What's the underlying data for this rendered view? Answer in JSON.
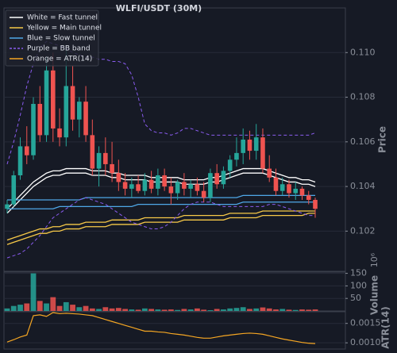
{
  "chart_data": {
    "type": "candlestick",
    "title": "WLFI/USDT (30M)",
    "ylabel": "Price",
    "ylim": [
      0.1002,
      0.112
    ],
    "yticks": [
      0.102,
      0.104,
      0.106,
      0.108,
      {
        "value": 0.11,
        "label": "0.110"
      }
    ],
    "grid": true,
    "legend": "upper left",
    "candles": {
      "up_color": "#26a69a",
      "down_color": "#ef5350",
      "open": [
        0.103,
        0.1032,
        0.1045,
        0.1058,
        0.1054,
        0.1077,
        0.1063,
        0.1092,
        0.1066,
        0.1062,
        0.1085,
        0.107,
        0.1078,
        0.1063,
        0.1048,
        0.1055,
        0.105,
        0.1046,
        0.1042,
        0.1039,
        0.1041,
        0.1038,
        0.1043,
        0.1039,
        0.1045,
        0.104,
        0.1037,
        0.1042,
        0.1039,
        0.1041,
        0.1038,
        0.1035,
        0.1046,
        0.1041,
        0.1047,
        0.1052,
        0.1055,
        0.1061,
        0.1056,
        0.1062,
        0.1048,
        0.1044,
        0.1038,
        0.1041,
        0.1037,
        0.1039,
        0.1036,
        0.1034
      ],
      "high": [
        0.1034,
        0.1047,
        0.1062,
        0.1067,
        0.108,
        0.1085,
        0.1098,
        0.11,
        0.1075,
        0.1102,
        0.1094,
        0.108,
        0.1085,
        0.107,
        0.1058,
        0.1062,
        0.106,
        0.1052,
        0.1046,
        0.1044,
        0.1045,
        0.1046,
        0.1047,
        0.1048,
        0.1048,
        0.1044,
        0.1043,
        0.1046,
        0.1043,
        0.1044,
        0.1042,
        0.1048,
        0.105,
        0.1049,
        0.1054,
        0.1062,
        0.1066,
        0.1065,
        0.1068,
        0.1066,
        0.1054,
        0.1048,
        0.1044,
        0.1043,
        0.1042,
        0.104,
        0.1038,
        0.1035
      ],
      "low": [
        0.1028,
        0.1031,
        0.1043,
        0.105,
        0.1052,
        0.106,
        0.106,
        0.106,
        0.1058,
        0.1058,
        0.1065,
        0.1062,
        0.106,
        0.1045,
        0.104,
        0.1045,
        0.1042,
        0.1038,
        0.1036,
        0.1035,
        0.1037,
        0.1036,
        0.1037,
        0.1036,
        0.1038,
        0.1032,
        0.1034,
        0.1036,
        0.1035,
        0.1036,
        0.1033,
        0.1033,
        0.1039,
        0.1039,
        0.1044,
        0.1049,
        0.105,
        0.1052,
        0.1052,
        0.1046,
        0.1042,
        0.1036,
        0.1036,
        0.1035,
        0.1034,
        0.1034,
        0.1032,
        0.1026
      ],
      "close": [
        0.1032,
        0.1045,
        0.1058,
        0.1054,
        0.1077,
        0.1063,
        0.1092,
        0.1066,
        0.1062,
        0.1085,
        0.107,
        0.1078,
        0.1063,
        0.1048,
        0.1055,
        0.105,
        0.1046,
        0.1042,
        0.1039,
        0.1041,
        0.1038,
        0.1043,
        0.1039,
        0.1045,
        0.104,
        0.1037,
        0.1042,
        0.1039,
        0.1041,
        0.1038,
        0.1035,
        0.1046,
        0.1041,
        0.1047,
        0.1052,
        0.1055,
        0.1061,
        0.1056,
        0.1062,
        0.1048,
        0.1044,
        0.1038,
        0.1041,
        0.1037,
        0.1039,
        0.1036,
        0.1034,
        0.103
      ]
    },
    "lines": [
      {
        "name": "White = Fast tunnel",
        "color": "#ffffff",
        "dash": false,
        "values": [
          0.103,
          0.1033,
          0.1036,
          0.1039,
          0.1042,
          0.1044,
          0.1046,
          0.1047,
          0.1047,
          0.1048,
          0.1048,
          0.1048,
          0.1048,
          0.1047,
          0.1047,
          0.1047,
          0.1046,
          0.1046,
          0.1045,
          0.1045,
          0.1045,
          0.1045,
          0.1044,
          0.1044,
          0.1044,
          0.1044,
          0.1044,
          0.1043,
          0.1043,
          0.1043,
          0.1043,
          0.1044,
          0.1044,
          0.1045,
          0.1046,
          0.1047,
          0.1048,
          0.1048,
          0.1048,
          0.1048,
          0.1047,
          0.1046,
          0.1045,
          0.1044,
          0.1044,
          0.1043,
          0.1043,
          0.1042
        ]
      },
      {
        "color": "#ffffff",
        "dash": false,
        "values": [
          0.1028,
          0.1031,
          0.1034,
          0.1037,
          0.104,
          0.1042,
          0.1044,
          0.1045,
          0.1045,
          0.1046,
          0.1046,
          0.1046,
          0.1046,
          0.1045,
          0.1045,
          0.1045,
          0.1044,
          0.1044,
          0.1043,
          0.1043,
          0.1043,
          0.1043,
          0.1042,
          0.1042,
          0.1042,
          0.1042,
          0.1042,
          0.1041,
          0.1041,
          0.1041,
          0.1041,
          0.1042,
          0.1042,
          0.1043,
          0.1044,
          0.1045,
          0.1046,
          0.1046,
          0.1046,
          0.1046,
          0.1045,
          0.1044,
          0.1043,
          0.1042,
          0.1042,
          0.1041,
          0.1041,
          0.104
        ]
      },
      {
        "name": "Yellow = Main tunnel",
        "color": "#f7c948",
        "dash": false,
        "values": [
          0.1016,
          0.1017,
          0.1018,
          0.1019,
          0.102,
          0.1021,
          0.1021,
          0.1022,
          0.1022,
          0.1023,
          0.1023,
          0.1023,
          0.1024,
          0.1024,
          0.1024,
          0.1024,
          0.1025,
          0.1025,
          0.1025,
          0.1025,
          0.1025,
          0.1026,
          0.1026,
          0.1026,
          0.1026,
          0.1026,
          0.1026,
          0.1027,
          0.1027,
          0.1027,
          0.1027,
          0.1027,
          0.1027,
          0.1027,
          0.1028,
          0.1028,
          0.1028,
          0.1028,
          0.1028,
          0.1029,
          0.1029,
          0.1029,
          0.1029,
          0.1029,
          0.1029,
          0.1029,
          0.1029,
          0.1029
        ]
      },
      {
        "color": "#f7c948",
        "dash": false,
        "values": [
          0.1014,
          0.1015,
          0.1016,
          0.1017,
          0.1018,
          0.1019,
          0.1019,
          0.102,
          0.102,
          0.1021,
          0.1021,
          0.1021,
          0.1022,
          0.1022,
          0.1022,
          0.1022,
          0.1023,
          0.1023,
          0.1023,
          0.1023,
          0.1023,
          0.1024,
          0.1024,
          0.1024,
          0.1024,
          0.1024,
          0.1024,
          0.1025,
          0.1025,
          0.1025,
          0.1025,
          0.1025,
          0.1025,
          0.1025,
          0.1026,
          0.1026,
          0.1026,
          0.1026,
          0.1026,
          0.1027,
          0.1027,
          0.1027,
          0.1027,
          0.1027,
          0.1027,
          0.1027,
          0.1028,
          0.1028
        ]
      },
      {
        "name": "Blue = Slow tunnel",
        "color": "#4fa8e8",
        "dash": false,
        "values": [
          0.1034,
          0.1034,
          0.1034,
          0.1034,
          0.1034,
          0.1034,
          0.1034,
          0.1034,
          0.1034,
          0.1034,
          0.1034,
          0.1034,
          0.1035,
          0.1035,
          0.1035,
          0.1035,
          0.1035,
          0.1035,
          0.1035,
          0.1035,
          0.1035,
          0.1035,
          0.1035,
          0.1035,
          0.1035,
          0.1035,
          0.1035,
          0.1035,
          0.1035,
          0.1035,
          0.1035,
          0.1035,
          0.1035,
          0.1035,
          0.1035,
          0.1035,
          0.1036,
          0.1036,
          0.1036,
          0.1036,
          0.1036,
          0.1036,
          0.1036,
          0.1036,
          0.1036,
          0.1036,
          0.1036,
          0.1036
        ]
      },
      {
        "color": "#4fa8e8",
        "dash": false,
        "values": [
          0.103,
          0.103,
          0.103,
          0.103,
          0.103,
          0.103,
          0.103,
          0.103,
          0.1031,
          0.1031,
          0.1031,
          0.1031,
          0.1031,
          0.1031,
          0.1031,
          0.1031,
          0.1031,
          0.1031,
          0.1031,
          0.1031,
          0.1032,
          0.1032,
          0.1032,
          0.1032,
          0.1032,
          0.1032,
          0.1032,
          0.1032,
          0.1032,
          0.1032,
          0.1032,
          0.1032,
          0.1032,
          0.1032,
          0.1032,
          0.1032,
          0.1033,
          0.1033,
          0.1033,
          0.1033,
          0.1033,
          0.1033,
          0.1033,
          0.1033,
          0.1033,
          0.1033,
          0.1033,
          0.1033
        ]
      },
      {
        "name": "Purple = BB band",
        "color": "#8a5cf0",
        "dash": true,
        "values": [
          0.105,
          0.106,
          0.1072,
          0.1085,
          0.1095,
          0.1102,
          0.1105,
          0.1104,
          0.1103,
          0.1102,
          0.11,
          0.1099,
          0.1098,
          0.1098,
          0.1097,
          0.1097,
          0.1096,
          0.1096,
          0.1095,
          0.109,
          0.108,
          0.1068,
          0.1065,
          0.1064,
          0.1064,
          0.1063,
          0.1064,
          0.1066,
          0.1066,
          0.1065,
          0.1064,
          0.1063,
          0.1063,
          0.1063,
          0.1063,
          0.1063,
          0.1063,
          0.1063,
          0.1063,
          0.1063,
          0.1063,
          0.1063,
          0.1063,
          0.1063,
          0.1063,
          0.1063,
          0.1063,
          0.1064
        ]
      },
      {
        "color": "#8a5cf0",
        "dash": true,
        "values": [
          0.1008,
          0.1009,
          0.101,
          0.1012,
          0.1015,
          0.1018,
          0.1022,
          0.1026,
          0.1028,
          0.103,
          0.1032,
          0.1034,
          0.1035,
          0.1034,
          0.1033,
          0.1032,
          0.103,
          0.1028,
          0.1026,
          0.1024,
          0.1023,
          0.1022,
          0.1021,
          0.1021,
          0.1022,
          0.1024,
          0.1027,
          0.103,
          0.1032,
          0.1033,
          0.1033,
          0.1033,
          0.1032,
          0.1031,
          0.1031,
          0.1031,
          0.1031,
          0.1031,
          0.1031,
          0.1031,
          0.1032,
          0.1032,
          0.1031,
          0.103,
          0.1029,
          0.1028,
          0.1027,
          0.1027
        ]
      }
    ],
    "volume": {
      "ylabel": "Volume",
      "offset_label": "10⁶",
      "ylim": [
        0,
        155
      ],
      "yticks": [
        50,
        100,
        150
      ],
      "values": [
        10,
        20,
        25,
        30,
        150,
        40,
        30,
        55,
        20,
        35,
        25,
        15,
        20,
        10,
        8,
        15,
        10,
        12,
        8,
        6,
        5,
        10,
        8,
        6,
        5,
        6,
        4,
        8,
        6,
        10,
        5,
        3,
        8,
        6,
        10,
        12,
        15,
        8,
        10,
        14,
        10,
        6,
        8,
        5,
        4,
        6,
        5,
        6
      ]
    },
    "atr": {
      "name": "Orange = ATR(14)",
      "ylabel": "ATR(14)",
      "color": "#f5a623",
      "ylim": [
        0.00084,
        0.0018
      ],
      "yticks": [
        {
          "value": 0.001,
          "label": "0.0010"
        },
        {
          "value": 0.0015,
          "label": "0.0015"
        }
      ],
      "values": [
        0.00102,
        0.00108,
        0.00115,
        0.0012,
        0.0017,
        0.00172,
        0.00168,
        0.00178,
        0.00175,
        0.00176,
        0.00175,
        0.00174,
        0.00172,
        0.0017,
        0.00165,
        0.0016,
        0.00155,
        0.0015,
        0.00145,
        0.0014,
        0.00135,
        0.0013,
        0.0013,
        0.00128,
        0.00127,
        0.00124,
        0.00122,
        0.0012,
        0.00117,
        0.00114,
        0.00112,
        0.00112,
        0.00115,
        0.00118,
        0.0012,
        0.00122,
        0.00124,
        0.00125,
        0.00124,
        0.00122,
        0.00118,
        0.00114,
        0.0011,
        0.00107,
        0.00104,
        0.00101,
        0.00099,
        0.00098
      ]
    }
  }
}
